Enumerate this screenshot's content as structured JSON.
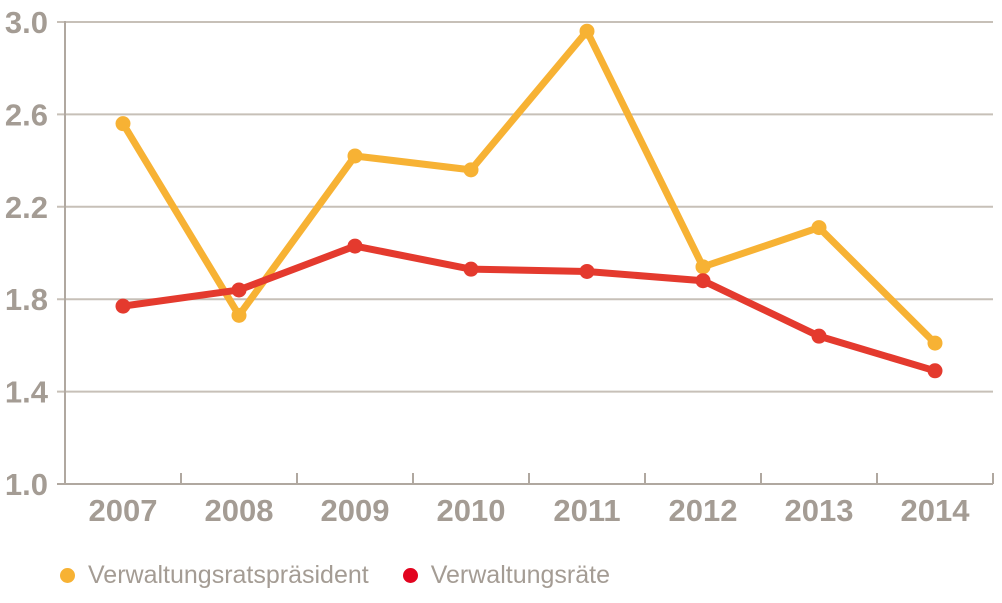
{
  "chart_data": {
    "type": "line",
    "title": "",
    "xlabel": "",
    "ylabel": "",
    "categories": [
      "2007",
      "2008",
      "2009",
      "2010",
      "2011",
      "2012",
      "2013",
      "2014"
    ],
    "series": [
      {
        "name": "Verwaltungsratspräsident",
        "color": "#F7B234",
        "legend_color": "#F7B234",
        "values": [
          2.56,
          1.73,
          2.42,
          2.36,
          2.96,
          1.94,
          2.11,
          1.61
        ]
      },
      {
        "name": "Verwaltungsräte",
        "color": "#E43A2E",
        "legend_color": "#E2041F",
        "values": [
          1.77,
          1.84,
          2.03,
          1.93,
          1.92,
          1.88,
          1.64,
          1.49
        ]
      }
    ],
    "ylim": [
      1.0,
      3.0
    ],
    "ytick_values": [
      3.0,
      2.6,
      2.2,
      1.8,
      1.4,
      1.0
    ],
    "yticks": [
      "3.0",
      "2.6",
      "2.2",
      "1.8",
      "1.4",
      "1.0"
    ],
    "grid": true,
    "legend_position": "bottom-left"
  },
  "colors": {
    "background": "#FFFFFF",
    "text": "#A49C94",
    "grid": "#C7C0B8",
    "axis": "#B0A8A0"
  }
}
